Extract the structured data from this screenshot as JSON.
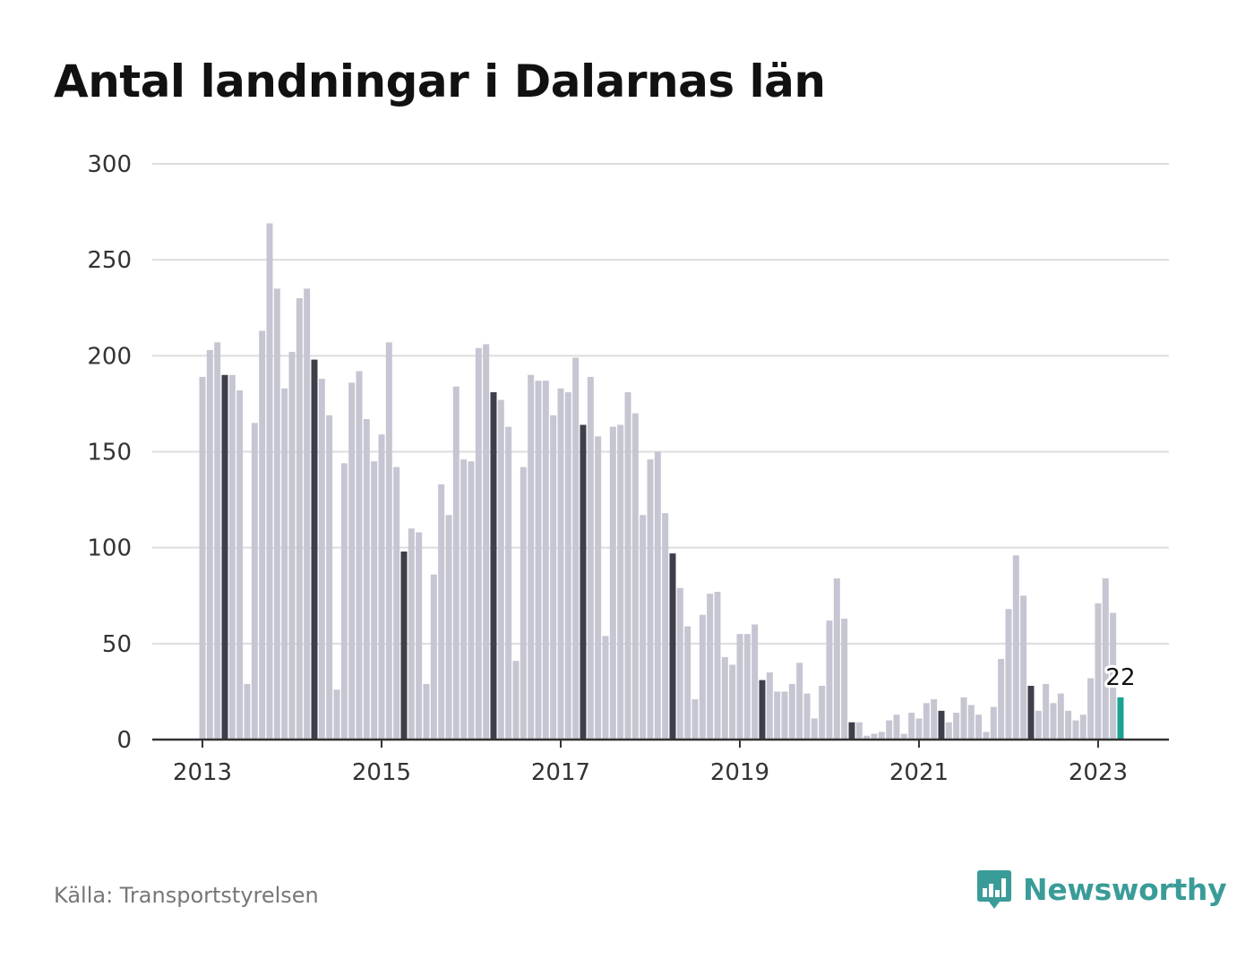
{
  "title": "Antal landningar i Dalarnas län",
  "source": "Källa: Transportstyrelsen",
  "brand": "Newsworthy",
  "colors": {
    "bar": "#c6c6d2",
    "highlight": "#3f3f4b",
    "latest": "#1aa393",
    "grid": "#dddddd",
    "axis": "#333333"
  },
  "chart_data": {
    "type": "bar",
    "title": "Antal landningar i Dalarnas län",
    "xlabel": "",
    "ylabel": "",
    "ylim": [
      0,
      300
    ],
    "yticks": [
      0,
      50,
      100,
      150,
      200,
      250,
      300
    ],
    "xticks": [
      {
        "label": "2013",
        "index": 0
      },
      {
        "label": "2015",
        "index": 24
      },
      {
        "label": "2017",
        "index": 48
      },
      {
        "label": "2019",
        "index": 72
      },
      {
        "label": "2021",
        "index": 96
      },
      {
        "label": "2023",
        "index": 120
      }
    ],
    "start": "2013-01",
    "values": [
      189,
      203,
      207,
      190,
      190,
      182,
      29,
      165,
      213,
      269,
      235,
      183,
      202,
      230,
      235,
      198,
      188,
      169,
      26,
      144,
      186,
      192,
      167,
      145,
      159,
      207,
      142,
      98,
      110,
      108,
      29,
      86,
      133,
      117,
      184,
      146,
      145,
      204,
      206,
      181,
      177,
      163,
      41,
      142,
      190,
      187,
      187,
      169,
      183,
      181,
      199,
      164,
      189,
      158,
      54,
      163,
      164,
      181,
      170,
      117,
      146,
      150,
      118,
      97,
      79,
      59,
      21,
      65,
      76,
      77,
      43,
      39,
      55,
      55,
      60,
      31,
      35,
      25,
      25,
      29,
      40,
      24,
      11,
      28,
      62,
      84,
      63,
      9,
      9,
      2,
      3,
      4,
      10,
      13,
      3,
      14,
      11,
      19,
      21,
      15,
      9,
      14,
      22,
      18,
      13,
      4,
      17,
      42,
      68,
      96,
      75,
      28,
      15,
      29,
      19,
      24,
      15,
      10,
      13,
      32,
      71,
      84,
      66,
      22
    ],
    "highlight_indices": [
      3,
      15,
      27,
      39,
      51,
      63,
      75,
      87,
      99,
      111
    ],
    "latest_index": 123,
    "latest_label": "22"
  }
}
